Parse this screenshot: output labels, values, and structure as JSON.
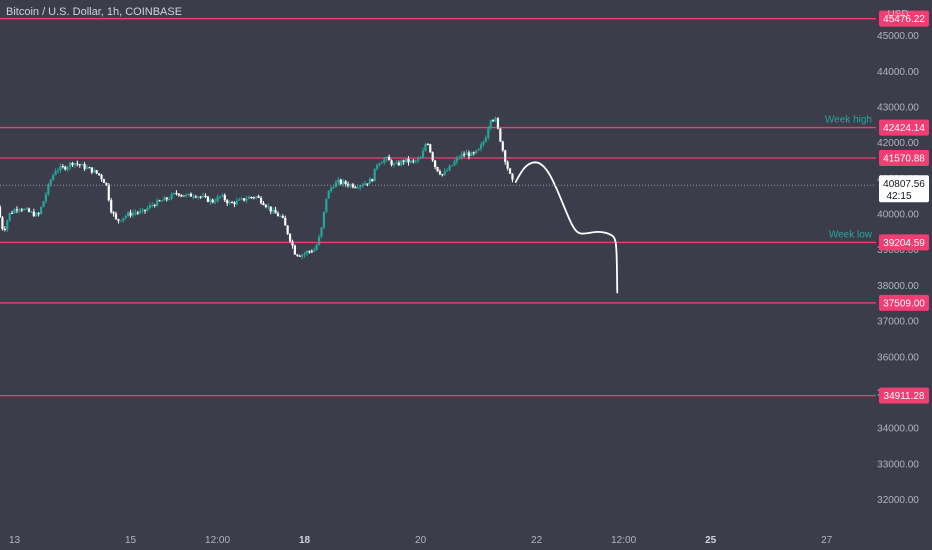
{
  "header": {
    "title": "Bitcoin / U.S. Dollar, 1h, COINBASE",
    "currency": "USD"
  },
  "colors": {
    "background": "#3b3d4a",
    "up": "#26a69a",
    "down": "#ffffff",
    "level_line": "#f23d72",
    "level_label": "#26a69a",
    "current_price_bg": "#ffffff",
    "projection": "#ffffff"
  },
  "chart_data": {
    "type": "candlestick",
    "title": "Bitcoin / U.S. Dollar, 1h, COINBASE",
    "xlabel": "",
    "ylabel": "",
    "ylim": [
      31200,
      46000
    ],
    "xlim": [
      12.75,
      27.85
    ],
    "y_ticks": [
      32000,
      33000,
      34000,
      35000,
      36000,
      37000,
      38000,
      39000,
      40000,
      41000,
      42000,
      43000,
      44000,
      45000,
      46000
    ],
    "y_tick_labels": [
      "32000.00",
      "33000.00",
      "34000.00",
      "35000.00",
      "36000.00",
      "37000.00",
      "38000.00",
      "39000.00",
      "40000.00",
      "41000.00",
      "42000.00",
      "43000.00",
      "44000.00",
      "45000.00",
      "46000.00"
    ],
    "x_ticks": [
      {
        "x": 13,
        "label": "13",
        "bold": false
      },
      {
        "x": 15,
        "label": "15",
        "bold": false
      },
      {
        "x": 16.5,
        "label": "12:00",
        "bold": false
      },
      {
        "x": 18,
        "label": "18",
        "bold": true
      },
      {
        "x": 20,
        "label": "20",
        "bold": false
      },
      {
        "x": 22,
        "label": "22",
        "bold": false
      },
      {
        "x": 23.5,
        "label": "12:00",
        "bold": false
      },
      {
        "x": 25,
        "label": "25",
        "bold": true
      },
      {
        "x": 27,
        "label": "27",
        "bold": false
      }
    ],
    "levels": [
      {
        "price": 45476.22,
        "label": "45476.22",
        "name": ""
      },
      {
        "price": 42424.14,
        "label": "42424.14",
        "name": "Week high"
      },
      {
        "price": 41570.88,
        "label": "41570.88",
        "name": ""
      },
      {
        "price": 39204.59,
        "label": "39204.59",
        "name": "Week low"
      },
      {
        "price": 37509.0,
        "label": "37509.00",
        "name": ""
      },
      {
        "price": 34911.28,
        "label": "34911.28",
        "name": ""
      }
    ],
    "current_price": {
      "price": 40807.56,
      "label": "40807.56",
      "countdown": "42:15"
    },
    "price_path": [
      [
        12.75,
        40200
      ],
      [
        12.85,
        39500
      ],
      [
        12.95,
        40000
      ],
      [
        13.1,
        40200
      ],
      [
        13.3,
        40050
      ],
      [
        13.45,
        39950
      ],
      [
        13.55,
        40400
      ],
      [
        13.65,
        40900
      ],
      [
        13.75,
        41250
      ],
      [
        13.9,
        41300
      ],
      [
        14.05,
        41450
      ],
      [
        14.2,
        41350
      ],
      [
        14.35,
        41250
      ],
      [
        14.5,
        41100
      ],
      [
        14.62,
        40850
      ],
      [
        14.7,
        40150
      ],
      [
        14.8,
        39800
      ],
      [
        14.95,
        39950
      ],
      [
        15.1,
        40050
      ],
      [
        15.25,
        40050
      ],
      [
        15.4,
        40250
      ],
      [
        15.55,
        40350
      ],
      [
        15.7,
        40450
      ],
      [
        15.85,
        40600
      ],
      [
        16.0,
        40500
      ],
      [
        16.15,
        40550
      ],
      [
        16.3,
        40450
      ],
      [
        16.45,
        40350
      ],
      [
        16.6,
        40500
      ],
      [
        16.75,
        40300
      ],
      [
        16.9,
        40350
      ],
      [
        17.05,
        40450
      ],
      [
        17.2,
        40500
      ],
      [
        17.35,
        40300
      ],
      [
        17.5,
        40050
      ],
      [
        17.65,
        39900
      ],
      [
        17.78,
        39350
      ],
      [
        17.88,
        38900
      ],
      [
        17.98,
        38850
      ],
      [
        18.1,
        38950
      ],
      [
        18.22,
        39000
      ],
      [
        18.32,
        39450
      ],
      [
        18.42,
        40500
      ],
      [
        18.52,
        40800
      ],
      [
        18.62,
        40900
      ],
      [
        18.75,
        40850
      ],
      [
        18.9,
        40800
      ],
      [
        19.05,
        40850
      ],
      [
        19.2,
        40950
      ],
      [
        19.3,
        41450
      ],
      [
        19.45,
        41550
      ],
      [
        19.6,
        41350
      ],
      [
        19.75,
        41500
      ],
      [
        19.9,
        41450
      ],
      [
        20.05,
        41550
      ],
      [
        20.15,
        42100
      ],
      [
        20.22,
        41700
      ],
      [
        20.3,
        41300
      ],
      [
        20.42,
        41100
      ],
      [
        20.55,
        41300
      ],
      [
        20.7,
        41600
      ],
      [
        20.82,
        41700
      ],
      [
        20.95,
        41650
      ],
      [
        21.05,
        41800
      ],
      [
        21.15,
        42100
      ],
      [
        21.25,
        42700
      ],
      [
        21.33,
        42650
      ],
      [
        21.4,
        42200
      ],
      [
        21.48,
        41650
      ],
      [
        21.55,
        41250
      ],
      [
        21.62,
        40900
      ]
    ],
    "projection_path": [
      [
        21.64,
        40900
      ],
      [
        21.75,
        41250
      ],
      [
        21.9,
        41450
      ],
      [
        22.05,
        41450
      ],
      [
        22.2,
        41200
      ],
      [
        22.35,
        40700
      ],
      [
        22.5,
        40100
      ],
      [
        22.62,
        39650
      ],
      [
        22.72,
        39450
      ],
      [
        22.85,
        39450
      ],
      [
        23.0,
        39500
      ],
      [
        23.12,
        39500
      ],
      [
        23.25,
        39450
      ],
      [
        23.35,
        39350
      ],
      [
        23.38,
        39000
      ],
      [
        23.39,
        37800
      ]
    ]
  }
}
